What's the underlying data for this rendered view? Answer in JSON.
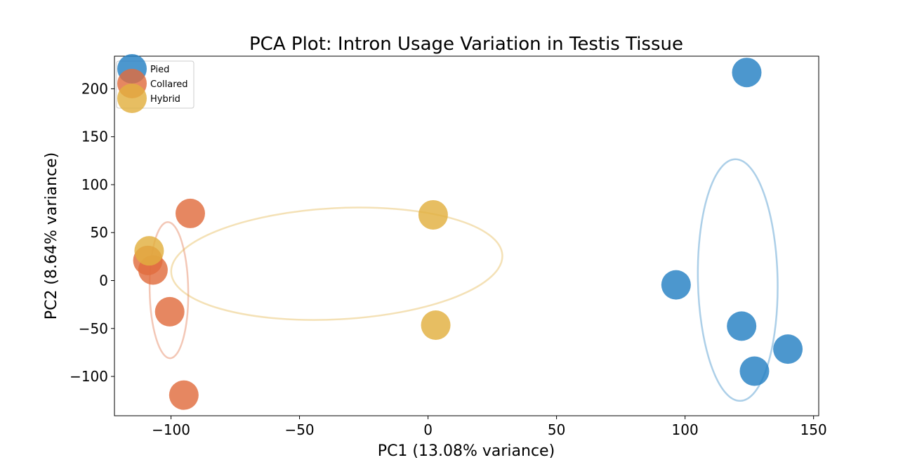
{
  "chart_data": {
    "type": "scatter",
    "title": "PCA Plot: Intron Usage Variation in Testis Tissue",
    "xlabel": "PC1 (13.08% variance)",
    "ylabel": "PC2 (8.64% variance)",
    "xlim": [
      -122,
      152
    ],
    "ylim": [
      -141,
      234
    ],
    "xticks": [
      -100,
      -50,
      0,
      50,
      100,
      150
    ],
    "yticks": [
      -100,
      -50,
      0,
      50,
      100,
      150,
      200
    ],
    "xtick_labels": [
      "−100",
      "−50",
      "0",
      "50",
      "100",
      "150"
    ],
    "ytick_labels": [
      "−100",
      "−50",
      "0",
      "50",
      "100",
      "150",
      "200"
    ],
    "grid": false,
    "legend_position": "top-left",
    "series": [
      {
        "name": "Pied",
        "color": "#2580c3",
        "points": [
          [
            124.0,
            217.0
          ],
          [
            96.5,
            -4.5
          ],
          [
            122.0,
            -47.5
          ],
          [
            140.0,
            -71.5
          ],
          [
            127.0,
            -94.5
          ]
        ],
        "ellipse": {
          "center": [
            120.5,
            0.5
          ],
          "semi_width": 15.5,
          "semi_height": 126,
          "angle_deg": -1.2
        }
      },
      {
        "name": "Collared",
        "color": "#e06c3e",
        "points": [
          [
            -92.5,
            70.0
          ],
          [
            -109.0,
            21.0
          ],
          [
            -107.0,
            11.0
          ],
          [
            -100.5,
            -32.5
          ],
          [
            -95.0,
            -119.5
          ]
        ],
        "ellipse": {
          "center": [
            -100.8,
            -10
          ],
          "semi_width": 7.5,
          "semi_height": 71,
          "angle_deg": -1.0
        }
      },
      {
        "name": "Hybrid",
        "color": "#e2b040",
        "points": [
          [
            2.0,
            68.5
          ],
          [
            -108.5,
            31.0
          ],
          [
            3.0,
            -46.5
          ]
        ],
        "ellipse": {
          "center": [
            -35.5,
            17.5
          ],
          "semi_width": 64.5,
          "semi_height": 58,
          "angle_deg": -3.0
        }
      }
    ]
  }
}
